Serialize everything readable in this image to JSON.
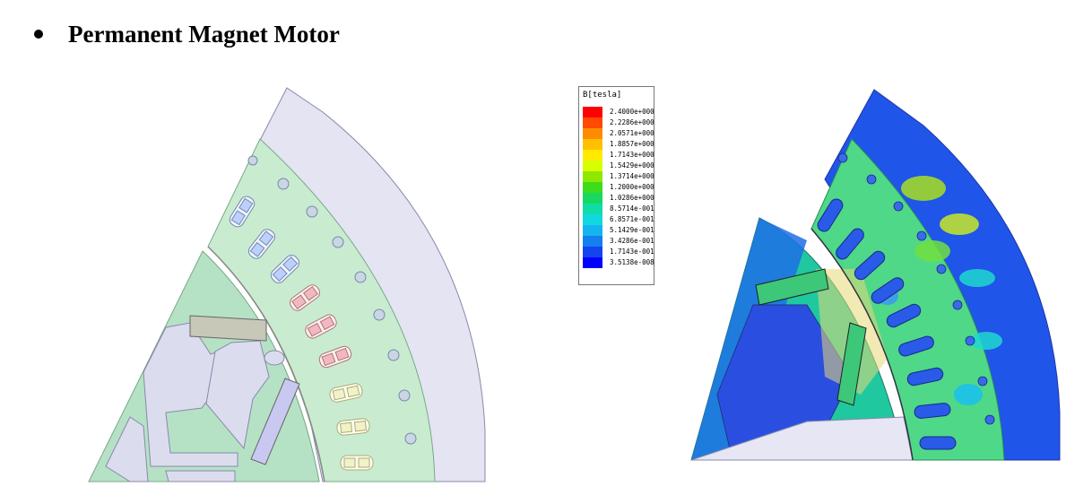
{
  "heading": "Permanent Magnet Motor",
  "legend": {
    "title": "B[tesla]",
    "entries": [
      {
        "value": "2.4000e+000",
        "color": "#ff0000"
      },
      {
        "value": "2.2286e+000",
        "color": "#ff4a00"
      },
      {
        "value": "2.0571e+000",
        "color": "#ff8c00"
      },
      {
        "value": "1.8857e+000",
        "color": "#ffc000"
      },
      {
        "value": "1.7143e+000",
        "color": "#ffea00"
      },
      {
        "value": "1.5429e+000",
        "color": "#d8ff00"
      },
      {
        "value": "1.3714e+000",
        "color": "#8ee800"
      },
      {
        "value": "1.2000e+000",
        "color": "#3ddc1c"
      },
      {
        "value": "1.0286e+000",
        "color": "#18d860"
      },
      {
        "value": "8.5714e-001",
        "color": "#10dca8"
      },
      {
        "value": "6.8571e-001",
        "color": "#10d8e0"
      },
      {
        "value": "5.1429e-001",
        "color": "#14b4f0"
      },
      {
        "value": "3.4286e-001",
        "color": "#1480f0"
      },
      {
        "value": "1.7143e-001",
        "color": "#1444f0"
      },
      {
        "value": "3.5138e-008",
        "color": "#0000ff"
      }
    ]
  }
}
